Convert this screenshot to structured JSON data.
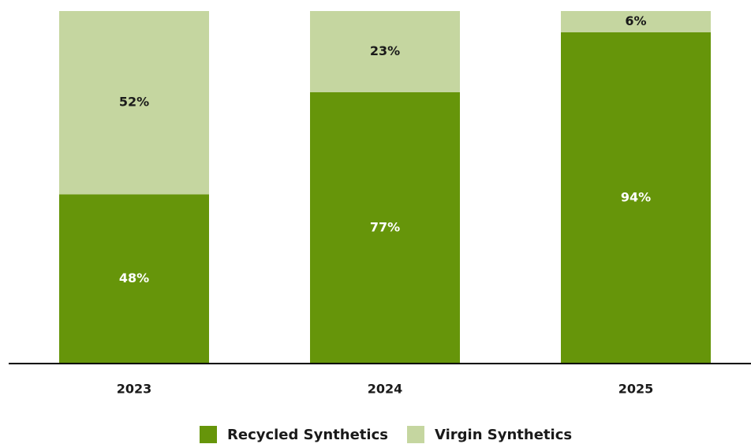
{
  "chart_data": {
    "type": "stacked_bar",
    "categories": [
      "2023",
      "2024",
      "2025"
    ],
    "series": [
      {
        "name": "Recycled Synthetics",
        "color": "#66950a",
        "values": [
          48,
          77,
          94
        ],
        "value_labels": [
          "48%",
          "77%",
          "94%"
        ]
      },
      {
        "name": "Virgin Synthetics",
        "color": "#c5d6a0",
        "values": [
          52,
          23,
          6
        ],
        "value_labels": [
          "52%",
          "23%",
          "6%"
        ]
      }
    ],
    "legend": "bottom"
  }
}
